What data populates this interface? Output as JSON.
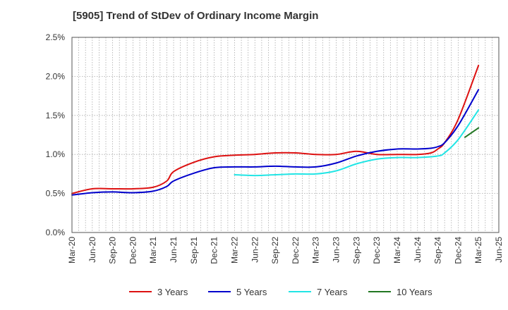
{
  "chart_data": {
    "type": "line",
    "title": "[5905]  Trend of StDev of Ordinary Income Margin",
    "xlabel": "",
    "ylabel": "",
    "x_ticks": [
      "Mar-20",
      "Jun-20",
      "Sep-20",
      "Dec-20",
      "Mar-21",
      "Jun-21",
      "Sep-21",
      "Dec-21",
      "Mar-22",
      "Jun-22",
      "Sep-22",
      "Dec-22",
      "Mar-23",
      "Jun-23",
      "Sep-23",
      "Dec-23",
      "Mar-24",
      "Jun-24",
      "Sep-24",
      "Dec-24",
      "Mar-25",
      "Jun-25"
    ],
    "y_ticks": [
      "0.0%",
      "0.5%",
      "1.0%",
      "1.5%",
      "2.0%",
      "2.5%"
    ],
    "ylim": [
      0,
      2.5
    ],
    "grid": true,
    "legend_position": "bottom",
    "series": [
      {
        "name": "3 Years",
        "color": "#dd1111",
        "x": [
          "Mar-20",
          "Jun-20",
          "Sep-20",
          "Dec-20",
          "Mar-21",
          "May-21",
          "Jun-21",
          "Sep-21",
          "Dec-21",
          "Mar-22",
          "Jun-22",
          "Sep-22",
          "Dec-22",
          "Mar-23",
          "Jun-23",
          "Sep-23",
          "Dec-23",
          "Mar-24",
          "Jun-24",
          "Aug-24",
          "Sep-24",
          "Oct-24",
          "Dec-24",
          "Mar-25"
        ],
        "values": [
          0.5,
          0.56,
          0.56,
          0.56,
          0.58,
          0.66,
          0.78,
          0.9,
          0.97,
          0.99,
          1.0,
          1.02,
          1.02,
          1.0,
          1.0,
          1.04,
          1.0,
          1.0,
          1.0,
          1.02,
          1.07,
          1.15,
          1.45,
          2.14
        ]
      },
      {
        "name": "5 Years",
        "color": "#0000cc",
        "x": [
          "Mar-20",
          "Jun-20",
          "Sep-20",
          "Dec-20",
          "Mar-21",
          "May-21",
          "Jun-21",
          "Sep-21",
          "Dec-21",
          "Mar-22",
          "Jun-22",
          "Sep-22",
          "Dec-22",
          "Mar-23",
          "Jun-23",
          "Sep-23",
          "Dec-23",
          "Mar-24",
          "Jun-24",
          "Aug-24",
          "Sep-24",
          "Oct-24",
          "Dec-24",
          "Mar-25"
        ],
        "values": [
          0.48,
          0.51,
          0.52,
          0.51,
          0.53,
          0.59,
          0.66,
          0.76,
          0.83,
          0.84,
          0.84,
          0.85,
          0.84,
          0.84,
          0.89,
          0.98,
          1.04,
          1.07,
          1.07,
          1.08,
          1.1,
          1.15,
          1.37,
          1.83
        ]
      },
      {
        "name": "7 Years",
        "color": "#22e5e5",
        "x": [
          "Mar-22",
          "Jun-22",
          "Sep-22",
          "Dec-22",
          "Mar-23",
          "Jun-23",
          "Sep-23",
          "Dec-23",
          "Mar-24",
          "Jun-24",
          "Sep-24",
          "Oct-24",
          "Dec-24",
          "Mar-25"
        ],
        "values": [
          0.74,
          0.73,
          0.74,
          0.75,
          0.75,
          0.79,
          0.88,
          0.94,
          0.96,
          0.96,
          0.98,
          1.02,
          1.19,
          1.57
        ]
      },
      {
        "name": "10 Years",
        "color": "#227722",
        "x": [
          "Jan-25",
          "Mar-25"
        ],
        "values": [
          1.22,
          1.34
        ]
      }
    ]
  }
}
